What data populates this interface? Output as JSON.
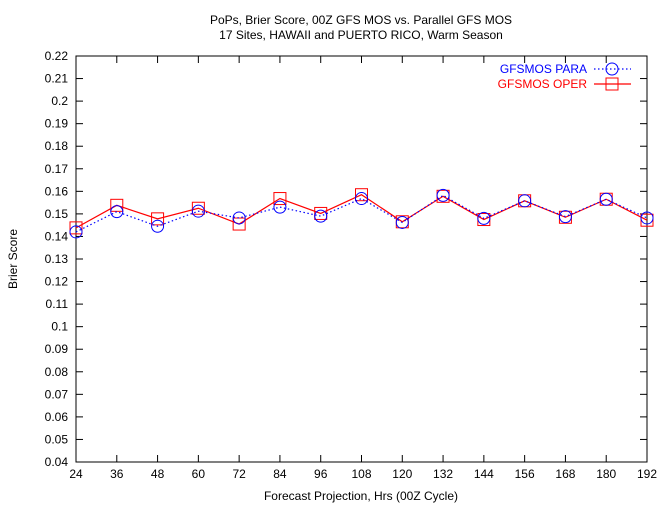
{
  "chart_data": {
    "type": "line",
    "title": "PoPs, Brier Score, 00Z GFS MOS vs. Parallel GFS MOS",
    "subtitle": "17 Sites, HAWAII and PUERTO RICO, Warm Season",
    "xlabel": "Forecast Projection, Hrs (00Z Cycle)",
    "ylabel": "Brier Score",
    "x": [
      24,
      36,
      48,
      60,
      72,
      84,
      96,
      108,
      120,
      132,
      144,
      156,
      168,
      180,
      192
    ],
    "x_tick_labels": [
      "24",
      "36",
      "48",
      "60",
      "72",
      "84",
      "96",
      "108",
      "120",
      "132",
      "144",
      "156",
      "168",
      "180",
      "192"
    ],
    "xlim": [
      24,
      192
    ],
    "ylim": [
      0.04,
      0.22
    ],
    "y_ticks": [
      0.04,
      0.05,
      0.06,
      0.07,
      0.08,
      0.09,
      0.1,
      0.11,
      0.12,
      0.13,
      0.14,
      0.15,
      0.16,
      0.17,
      0.18,
      0.19,
      0.2,
      0.21,
      0.22
    ],
    "y_tick_labels": [
      "0.04",
      "0.05",
      "0.06",
      "0.07",
      "0.08",
      "0.09",
      "0.1",
      "0.11",
      "0.12",
      "0.13",
      "0.14",
      "0.15",
      "0.16",
      "0.17",
      "0.18",
      "0.19",
      "0.2",
      "0.21",
      "0.22"
    ],
    "legend_position": "top-right",
    "grid": false,
    "series": [
      {
        "name": "GFSMOS PARA",
        "color": "#0000ff",
        "line_style": "dotted",
        "marker": "circle",
        "values": [
          0.142,
          0.151,
          0.1445,
          0.1512,
          0.1482,
          0.153,
          0.149,
          0.1568,
          0.1462,
          0.1582,
          0.148,
          0.1558,
          0.1488,
          0.1565,
          0.1482
        ]
      },
      {
        "name": "GFSMOS OPER",
        "color": "#ff0000",
        "line_style": "solid",
        "marker": "square",
        "values": [
          0.1438,
          0.1538,
          0.1478,
          0.1525,
          0.1455,
          0.1568,
          0.1502,
          0.1585,
          0.1465,
          0.1578,
          0.1475,
          0.1558,
          0.1485,
          0.1565,
          0.1472
        ]
      }
    ]
  }
}
